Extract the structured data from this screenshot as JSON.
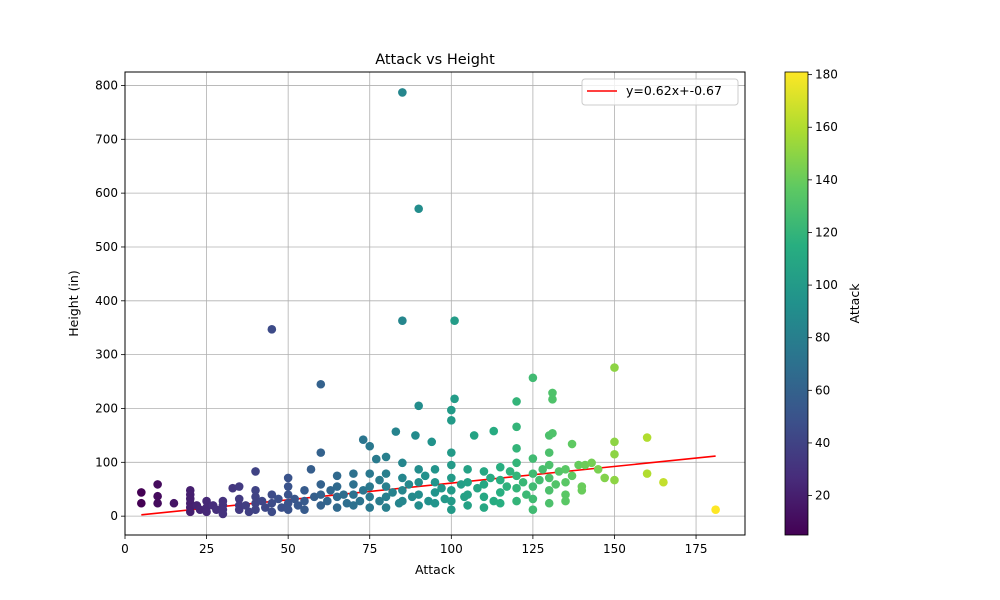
{
  "chart_data": {
    "type": "scatter",
    "title": "Attack vs Height",
    "xlabel": "Attack",
    "ylabel": "Height (in)",
    "xlim": [
      0,
      190
    ],
    "ylim": [
      -35,
      825
    ],
    "xticks": [
      0,
      25,
      50,
      75,
      100,
      125,
      150,
      175
    ],
    "yticks": [
      0,
      100,
      200,
      300,
      400,
      500,
      600,
      700,
      800
    ],
    "grid": true,
    "legend": {
      "placement": "top-right",
      "entries": [
        "y=0.62x+-0.67"
      ]
    },
    "colorbar": {
      "label": "Attack",
      "min": 5,
      "max": 181,
      "ticks": [
        20,
        40,
        60,
        80,
        100,
        120,
        140,
        160,
        180
      ],
      "colormap": "viridis"
    },
    "fit_line": {
      "slope": 0.62,
      "intercept": -0.67,
      "x_range": [
        5,
        181
      ],
      "color": "#ff0000"
    },
    "series": [
      {
        "points": [
          [
            5,
            44
          ],
          [
            5,
            24
          ],
          [
            10,
            59
          ],
          [
            10,
            37
          ],
          [
            10,
            24
          ],
          [
            15,
            24
          ],
          [
            20,
            48
          ],
          [
            20,
            40
          ],
          [
            20,
            32
          ],
          [
            20,
            24
          ],
          [
            20,
            16
          ],
          [
            20,
            8
          ],
          [
            22,
            20
          ],
          [
            23,
            12
          ],
          [
            25,
            28
          ],
          [
            25,
            16
          ],
          [
            25,
            8
          ],
          [
            27,
            20
          ],
          [
            28,
            12
          ],
          [
            30,
            28
          ],
          [
            30,
            20
          ],
          [
            30,
            12
          ],
          [
            30,
            4
          ],
          [
            33,
            52
          ],
          [
            35,
            55
          ],
          [
            35,
            32
          ],
          [
            35,
            20
          ],
          [
            35,
            12
          ],
          [
            37,
            20
          ],
          [
            38,
            8
          ],
          [
            40,
            83
          ],
          [
            40,
            48
          ],
          [
            40,
            36
          ],
          [
            40,
            24
          ],
          [
            40,
            12
          ],
          [
            42,
            28
          ],
          [
            43,
            16
          ],
          [
            45,
            347
          ],
          [
            45,
            40
          ],
          [
            45,
            24
          ],
          [
            45,
            8
          ],
          [
            47,
            32
          ],
          [
            48,
            16
          ],
          [
            50,
            71
          ],
          [
            50,
            55
          ],
          [
            50,
            40
          ],
          [
            50,
            24
          ],
          [
            50,
            12
          ],
          [
            52,
            32
          ],
          [
            53,
            20
          ],
          [
            55,
            48
          ],
          [
            55,
            28
          ],
          [
            55,
            12
          ],
          [
            57,
            87
          ],
          [
            58,
            36
          ],
          [
            60,
            245
          ],
          [
            60,
            118
          ],
          [
            60,
            59
          ],
          [
            60,
            40
          ],
          [
            60,
            20
          ],
          [
            62,
            28
          ],
          [
            63,
            48
          ],
          [
            65,
            75
          ],
          [
            65,
            55
          ],
          [
            65,
            36
          ],
          [
            65,
            16
          ],
          [
            67,
            40
          ],
          [
            68,
            24
          ],
          [
            70,
            79
          ],
          [
            70,
            59
          ],
          [
            70,
            40
          ],
          [
            70,
            20
          ],
          [
            72,
            28
          ],
          [
            73,
            142
          ],
          [
            73,
            48
          ],
          [
            75,
            130
          ],
          [
            75,
            79
          ],
          [
            75,
            55
          ],
          [
            75,
            36
          ],
          [
            75,
            16
          ],
          [
            77,
            106
          ],
          [
            78,
            67
          ],
          [
            78,
            28
          ],
          [
            80,
            110
          ],
          [
            80,
            79
          ],
          [
            80,
            55
          ],
          [
            80,
            36
          ],
          [
            80,
            16
          ],
          [
            82,
            44
          ],
          [
            83,
            157
          ],
          [
            84,
            24
          ],
          [
            85,
            787
          ],
          [
            85,
            363
          ],
          [
            85,
            99
          ],
          [
            85,
            71
          ],
          [
            85,
            48
          ],
          [
            85,
            28
          ],
          [
            87,
            59
          ],
          [
            88,
            36
          ],
          [
            89,
            150
          ],
          [
            90,
            571
          ],
          [
            90,
            205
          ],
          [
            90,
            87
          ],
          [
            90,
            63
          ],
          [
            90,
            40
          ],
          [
            90,
            20
          ],
          [
            92,
            75
          ],
          [
            93,
            28
          ],
          [
            94,
            138
          ],
          [
            95,
            87
          ],
          [
            95,
            63
          ],
          [
            95,
            44
          ],
          [
            95,
            24
          ],
          [
            97,
            52
          ],
          [
            98,
            32
          ],
          [
            100,
            197
          ],
          [
            100,
            178
          ],
          [
            100,
            118
          ],
          [
            100,
            95
          ],
          [
            100,
            71
          ],
          [
            100,
            48
          ],
          [
            100,
            28
          ],
          [
            100,
            12
          ],
          [
            101,
            363
          ],
          [
            101,
            218
          ],
          [
            103,
            59
          ],
          [
            104,
            36
          ],
          [
            105,
            87
          ],
          [
            105,
            63
          ],
          [
            105,
            40
          ],
          [
            105,
            20
          ],
          [
            107,
            150
          ],
          [
            108,
            52
          ],
          [
            110,
            83
          ],
          [
            110,
            59
          ],
          [
            110,
            36
          ],
          [
            110,
            16
          ],
          [
            112,
            71
          ],
          [
            113,
            158
          ],
          [
            113,
            28
          ],
          [
            115,
            91
          ],
          [
            115,
            67
          ],
          [
            115,
            44
          ],
          [
            115,
            24
          ],
          [
            117,
            55
          ],
          [
            118,
            83
          ],
          [
            120,
            213
          ],
          [
            120,
            166
          ],
          [
            120,
            126
          ],
          [
            120,
            99
          ],
          [
            120,
            75
          ],
          [
            120,
            52
          ],
          [
            120,
            28
          ],
          [
            122,
            63
          ],
          [
            123,
            40
          ],
          [
            125,
            257
          ],
          [
            125,
            107
          ],
          [
            125,
            79
          ],
          [
            125,
            55
          ],
          [
            125,
            32
          ],
          [
            125,
            12
          ],
          [
            127,
            67
          ],
          [
            128,
            87
          ],
          [
            130,
            150
          ],
          [
            130,
            118
          ],
          [
            130,
            95
          ],
          [
            130,
            71
          ],
          [
            130,
            48
          ],
          [
            130,
            24
          ],
          [
            131,
            229
          ],
          [
            131,
            217
          ],
          [
            131,
            154
          ],
          [
            132,
            59
          ],
          [
            133,
            83
          ],
          [
            135,
            87
          ],
          [
            135,
            63
          ],
          [
            135,
            40
          ],
          [
            135,
            28
          ],
          [
            137,
            134
          ],
          [
            137,
            75
          ],
          [
            139,
            95
          ],
          [
            140,
            55
          ],
          [
            140,
            48
          ],
          [
            141,
            95
          ],
          [
            143,
            99
          ],
          [
            145,
            87
          ],
          [
            147,
            71
          ],
          [
            150,
            276
          ],
          [
            150,
            138
          ],
          [
            150,
            115
          ],
          [
            150,
            67
          ],
          [
            160,
            146
          ],
          [
            160,
            79
          ],
          [
            165,
            63
          ],
          [
            181,
            12
          ]
        ]
      }
    ]
  }
}
